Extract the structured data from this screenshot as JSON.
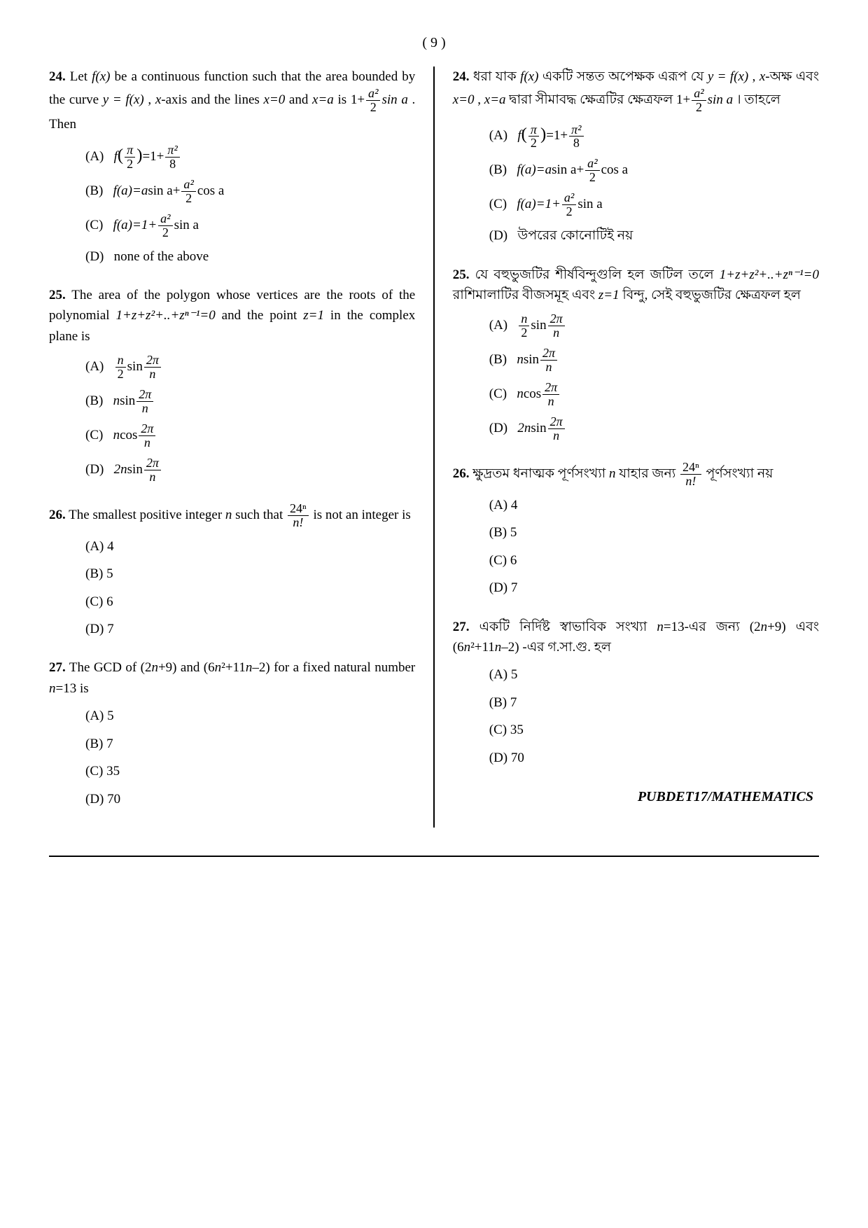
{
  "page_number_label": "( 9 )",
  "footer": "PUBDET17/MATHEMATICS",
  "left": {
    "q24": {
      "num": "24.",
      "text_pre": "Let  ",
      "fx": "f(x)",
      "text1": " be a continuous function such that the area bounded by the curve  ",
      "yfx": "y = f(x)",
      "text2": " ,  ",
      "xaxis": "x",
      "text3": "-axis and the lines  ",
      "x0": "x=0",
      "text4": "  and  ",
      "xa": "x=a",
      "text5": "  is  ",
      "expr_prefix": "1+",
      "expr_num": "a²",
      "expr_den": "2",
      "expr_suffix": "sin a",
      "text6": " . Then",
      "optA_label": "(A)",
      "optA_pre": "f",
      "optA_lpar": "(",
      "optA_arg_num": "π",
      "optA_arg_den": "2",
      "optA_rpar": ")",
      "optA_eq": "=1+",
      "optA_rhs_num": "π²",
      "optA_rhs_den": "8",
      "optB_label": "(B)",
      "optB_text1": "f(a)=a",
      "optB_text2": "sin a+",
      "optB_num": "a²",
      "optB_den": "2",
      "optB_text3": "cos a",
      "optC_label": "(C)",
      "optC_text1": "f(a)=1+",
      "optC_num": "a²",
      "optC_den": "2",
      "optC_text2": "sin a",
      "optD_label": "(D)",
      "optD_text": "none of the above"
    },
    "q25": {
      "num": "25.",
      "text1": "The area of the polygon whose vertices are the roots of the polynomial  ",
      "poly": "1+z+z²+..+zⁿ⁻¹=0",
      "text2": "  and the point  ",
      "z1": "z=1",
      "text3": "  in the complex plane is",
      "optA_label": "(A)",
      "optA_num": "n",
      "optA_den": "2",
      "optA_sin": "sin",
      "optA_arg_num": "2π",
      "optA_arg_den": "n",
      "optB_label": "(B)",
      "optB_pre": "n",
      "optB_sin": "sin",
      "optB_arg_num": "2π",
      "optB_arg_den": "n",
      "optC_label": "(C)",
      "optC_pre": "n",
      "optC_cos": "cos",
      "optC_arg_num": "2π",
      "optC_arg_den": "n",
      "optD_label": "(D)",
      "optD_pre": "2n",
      "optD_sin": "sin",
      "optD_arg_num": "2π",
      "optD_arg_den": "n"
    },
    "q26": {
      "num": "26.",
      "text1": "The smallest positive integer ",
      "n": "n",
      "text2": " such that  ",
      "frac_num": "24ⁿ",
      "frac_den": "n!",
      "text3": "  is not an integer is",
      "optA": "(A)  4",
      "optB": "(B)  5",
      "optC": "(C)  6",
      "optD": "(D)  7"
    },
    "q27": {
      "num": "27.",
      "text1": "The GCD of (2",
      "n1": "n",
      "text2": "+9) and (6",
      "n2": "n",
      "text3": "²+11",
      "n3": "n",
      "text4": "–2) for a fixed natural number ",
      "n4": "n",
      "text5": "=13 is",
      "optA": "(A)  5",
      "optB": "(B)  7",
      "optC": "(C)  35",
      "optD": "(D)  70"
    }
  },
  "right": {
    "q24": {
      "num": "24.",
      "text1": "ধরা যাক ",
      "fx": "f(x)",
      "text2": " একটি সন্তত অপেক্ষক এরূপ যে ",
      "yfx": "y = f(x)",
      "text3": " , ",
      "xaxis": "x",
      "text4": "-অক্ষ এবং ",
      "x0": "x=0",
      "text5": " , ",
      "xa": "x=a",
      "text6": "  দ্বারা সীমাবদ্ধ ক্ষেত্রটির ক্ষেত্রফল ",
      "expr_prefix": "1+",
      "expr_num": "a²",
      "expr_den": "2",
      "expr_suffix": "sin a",
      "text7": " । তাহলে",
      "optA_label": "(A)",
      "optB_label": "(B)",
      "optC_label": "(C)",
      "optD_label": "(D)",
      "optD_text": "উপরের কোনোটিই নয়"
    },
    "q25": {
      "num": "25.",
      "text1": "যে বহুভুজটির শীর্ষবিন্দুগুলি হল জটিল তলে ",
      "poly": "1+z+z²+..+zⁿ⁻¹=0",
      "text2": " রাশিমালাটির বীজসমূহ এবং ",
      "z1": "z=1",
      "text3": " বিন্দু, সেই বহুভুজটির ক্ষেত্রফল হল",
      "optA_label": "(A)",
      "optB_label": "(B)",
      "optC_label": "(C)",
      "optD_label": "(D)"
    },
    "q26": {
      "num": "26.",
      "text1": "ক্ষুদ্রতম ধনাত্মক পূর্ণসংখ্যা ",
      "n": "n",
      "text2": " যাহার জন্য  ",
      "frac_num": "24ⁿ",
      "frac_den": "n!",
      "text3": "  পূর্ণসংখ্যা নয়",
      "optA": "(A)  4",
      "optB": "(B)  5",
      "optC": "(C)  6",
      "optD": "(D)  7"
    },
    "q27": {
      "num": "27.",
      "text1": "একটি নির্দিষ্ট স্বাভাবিক সংখ্যা ",
      "n1": "n",
      "text2": "=13-এর জন্য (2",
      "n2": "n",
      "text3": "+9) এবং (6",
      "n3": "n",
      "text4": "²+11",
      "n4": "n",
      "text5": "–2) -এর গ.সা.গু. হল",
      "optA": "(A)  5",
      "optB": "(B)  7",
      "optC": "(C)  35",
      "optD": "(D)  70"
    }
  }
}
